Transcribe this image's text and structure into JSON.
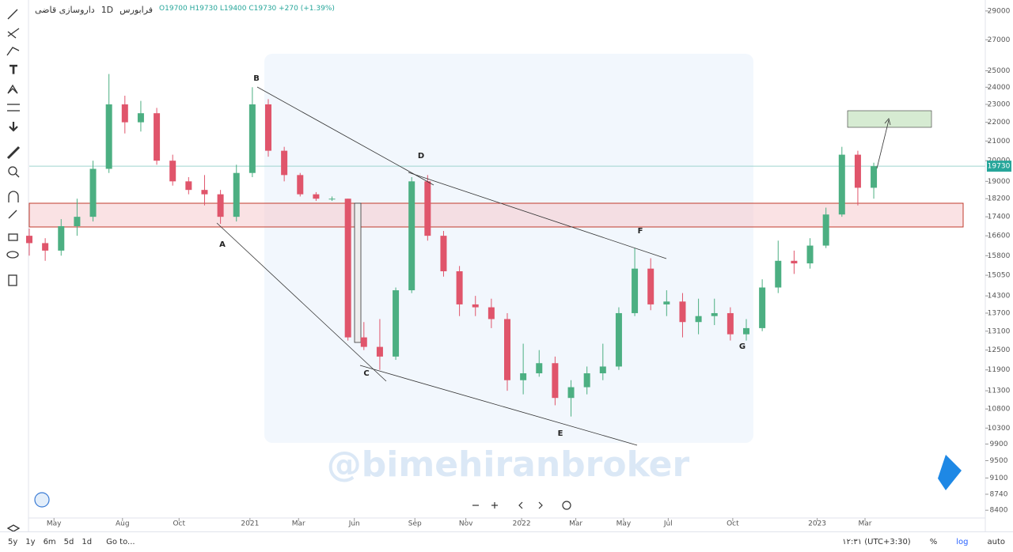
{
  "header": {
    "symbol": "داروسازی قاضی",
    "interval": "1D",
    "exchange": "فرابورس",
    "ohlc": "O19700 H19730 L19400 C19730 +270 (+1.39%)"
  },
  "chart_data": {
    "type": "candlestick",
    "watermark": "@bimehiranbroker",
    "x": [
      0,
      2,
      4,
      6,
      8,
      10,
      12,
      14,
      16,
      18,
      20,
      22,
      24,
      26,
      28,
      30,
      32,
      34,
      36,
      38,
      40,
      42,
      44,
      46,
      48,
      50,
      52,
      54,
      56,
      58,
      60,
      62,
      64,
      66,
      68,
      70,
      72,
      74,
      76,
      78,
      80,
      82,
      84,
      86,
      88,
      90,
      92,
      94,
      96,
      98,
      100,
      102,
      104,
      106
    ],
    "open": [
      16600,
      16300,
      16000,
      17000,
      17400,
      19600,
      23000,
      22000,
      22500,
      20000,
      19000,
      18600,
      18400,
      17400,
      19400,
      23000,
      20500,
      19300,
      18400,
      18200,
      18200,
      12900,
      12600,
      12300,
      14500,
      19000,
      16600,
      15200,
      14000,
      13900,
      13500,
      11600,
      11800,
      12100,
      11100,
      11400,
      11800,
      12000,
      13700,
      15300,
      14000,
      14100,
      13400,
      13600,
      13700,
      13000,
      13200,
      14600,
      15600,
      15500,
      16200,
      17500,
      20300,
      18700
    ],
    "high": [
      16900,
      16500,
      17300,
      18200,
      20000,
      24800,
      23500,
      23200,
      22800,
      20300,
      19200,
      19300,
      18600,
      19800,
      24000,
      23300,
      20700,
      19400,
      18500,
      18300,
      18200,
      13400,
      13500,
      14600,
      19200,
      19300,
      16800,
      15400,
      14300,
      14200,
      13700,
      12700,
      12500,
      12300,
      11600,
      12000,
      12700,
      13900,
      16100,
      15700,
      14500,
      14400,
      14200,
      14200,
      13900,
      13500,
      14900,
      16400,
      16000,
      16500,
      17800,
      20700,
      20500,
      19900
    ],
    "low": [
      15800,
      15600,
      15800,
      16600,
      17200,
      19400,
      21400,
      21500,
      19800,
      18800,
      18400,
      17900,
      17100,
      17200,
      19200,
      20200,
      19000,
      18300,
      18100,
      18100,
      12800,
      12500,
      11900,
      12200,
      14400,
      16400,
      15000,
      13600,
      13600,
      13200,
      11300,
      11200,
      11700,
      10900,
      10600,
      11200,
      11600,
      11900,
      13600,
      13800,
      13600,
      12900,
      13000,
      13300,
      12800,
      12800,
      13100,
      14400,
      15100,
      15300,
      16100,
      17400,
      17900,
      18200
    ],
    "close": [
      16300,
      16000,
      17000,
      17400,
      19600,
      23000,
      22000,
      22500,
      20000,
      19000,
      18600,
      18400,
      17400,
      19400,
      23000,
      20500,
      19300,
      18400,
      18200,
      18200,
      12900,
      12600,
      12300,
      14500,
      19000,
      16600,
      15200,
      14000,
      13900,
      13500,
      11600,
      11800,
      12100,
      11100,
      11400,
      11800,
      12000,
      13700,
      15300,
      14000,
      14100,
      13400,
      13600,
      13700,
      13000,
      13200,
      14600,
      15600,
      15500,
      16200,
      17500,
      20300,
      18700,
      19730
    ],
    "up_color": "#4caf82",
    "down_color": "#e0556b",
    "last_price": 19730,
    "log_scale": true,
    "xlim": [
      0,
      120
    ],
    "xticks": [
      {
        "value": 3.1,
        "label": "May"
      },
      {
        "value": 11.7,
        "label": "Aug"
      },
      {
        "value": 18.8,
        "label": "Oct"
      },
      {
        "value": 27.7,
        "label": "2021"
      },
      {
        "value": 33.8,
        "label": "Mar"
      },
      {
        "value": 40.8,
        "label": "Jun"
      },
      {
        "value": 48.4,
        "label": "Sep"
      },
      {
        "value": 54.8,
        "label": "Nov"
      },
      {
        "value": 61.8,
        "label": "2022"
      },
      {
        "value": 68.6,
        "label": "Mar"
      },
      {
        "value": 74.6,
        "label": "May"
      },
      {
        "value": 80.2,
        "label": "Jul"
      },
      {
        "value": 88.3,
        "label": "Oct"
      },
      {
        "value": 98.9,
        "label": "2023"
      },
      {
        "value": 104.9,
        "label": "Mar"
      }
    ],
    "ylim": [
      8240,
      29800
    ],
    "yticks": [
      29000,
      27000,
      25000,
      24000,
      23000,
      22000,
      21000,
      20000,
      19000,
      18200,
      17400,
      16600,
      15800,
      15050,
      14300,
      13700,
      13100,
      12500,
      11900,
      11300,
      10800,
      10300,
      9900,
      9500,
      9100,
      8740,
      8400
    ],
    "annotations": [
      "A",
      "B",
      "C",
      "D",
      "E",
      "F",
      "G"
    ]
  },
  "toolbar": {
    "ranges": [
      "5y",
      "1y",
      "6m",
      "5d",
      "1d"
    ],
    "goto": "Go to...",
    "time": "۱۲:۳۱ (UTC+3:30)",
    "percent": "%",
    "log": "log",
    "auto": "auto"
  }
}
